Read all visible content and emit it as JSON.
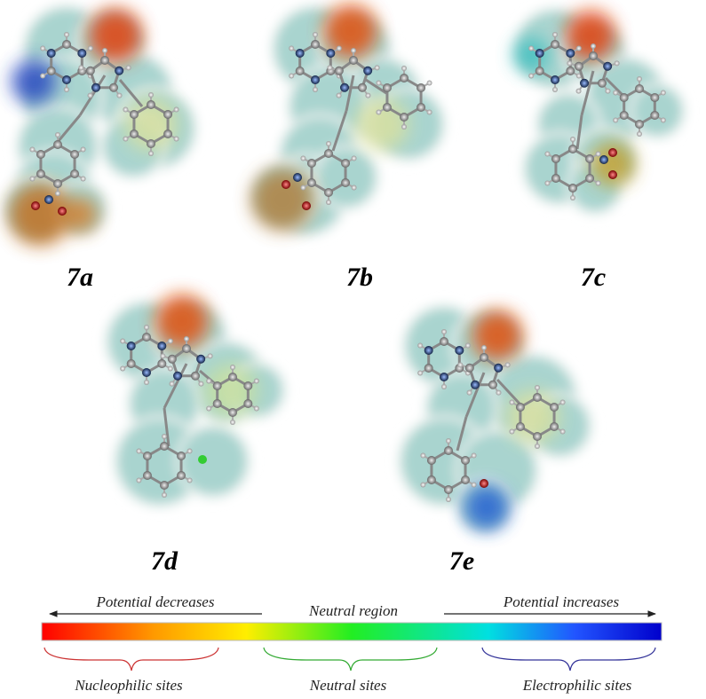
{
  "figure": {
    "molecules": [
      {
        "label": "7a"
      },
      {
        "label": "7b"
      },
      {
        "label": "7c"
      },
      {
        "label": "7d"
      },
      {
        "label": "7e"
      }
    ],
    "legend": {
      "left_arrow": "Potential decreases",
      "center": "Neutral region",
      "right_arrow": "Potential increases",
      "sites": [
        "Nucleophilic sites",
        "Neutral sites",
        "Electrophilic sites"
      ]
    }
  }
}
